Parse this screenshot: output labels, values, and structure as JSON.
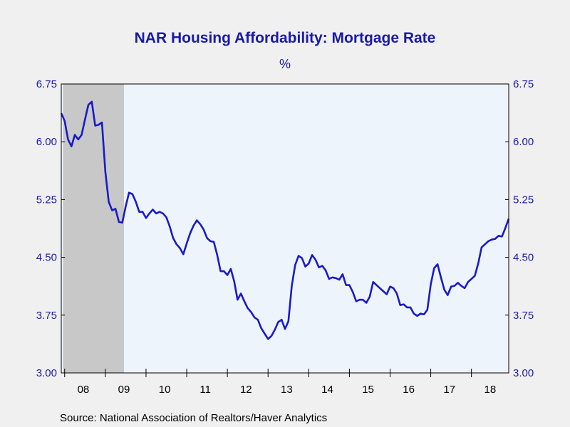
{
  "chart_data": {
    "type": "line",
    "title": "NAR Housing Affordability: Mortgage Rate",
    "unit": "%",
    "source": "Source:  National Association of Realtors/Haver Analytics",
    "ylim": [
      3.0,
      6.75
    ],
    "yticks": [
      "3.00",
      "3.75",
      "4.50",
      "5.25",
      "6.00",
      "6.75"
    ],
    "x_start": "2007-12",
    "x_end": "2018-12",
    "year_labels": [
      "08",
      "09",
      "10",
      "11",
      "12",
      "13",
      "14",
      "15",
      "16",
      "17",
      "18"
    ],
    "recession": {
      "start": "2008-01",
      "end": "2009-06",
      "color": "#c8c8c8"
    },
    "plot_background": "#eef4fc",
    "line_color": "#1a1ac8",
    "text_color": "#1a1aa8",
    "series": [
      {
        "points": [
          [
            "2007-12",
            6.37
          ],
          [
            "2008-01",
            6.27
          ],
          [
            "2008-02",
            6.03
          ],
          [
            "2008-03",
            5.94
          ],
          [
            "2008-04",
            6.09
          ],
          [
            "2008-05",
            6.03
          ],
          [
            "2008-06",
            6.09
          ],
          [
            "2008-07",
            6.29
          ],
          [
            "2008-08",
            6.48
          ],
          [
            "2008-09",
            6.52
          ],
          [
            "2008-10",
            6.21
          ],
          [
            "2008-11",
            6.22
          ],
          [
            "2008-12",
            6.25
          ],
          [
            "2009-01",
            5.61
          ],
          [
            "2009-02",
            5.22
          ],
          [
            "2009-03",
            5.11
          ],
          [
            "2009-04",
            5.13
          ],
          [
            "2009-05",
            4.96
          ],
          [
            "2009-06",
            4.95
          ],
          [
            "2009-07",
            5.16
          ],
          [
            "2009-08",
            5.34
          ],
          [
            "2009-09",
            5.32
          ],
          [
            "2009-10",
            5.22
          ],
          [
            "2009-11",
            5.09
          ],
          [
            "2009-12",
            5.09
          ],
          [
            "2010-01",
            5.01
          ],
          [
            "2010-02",
            5.07
          ],
          [
            "2010-03",
            5.12
          ],
          [
            "2010-04",
            5.07
          ],
          [
            "2010-05",
            5.09
          ],
          [
            "2010-06",
            5.07
          ],
          [
            "2010-07",
            5.02
          ],
          [
            "2010-08",
            4.9
          ],
          [
            "2010-09",
            4.75
          ],
          [
            "2010-10",
            4.67
          ],
          [
            "2010-11",
            4.62
          ],
          [
            "2010-12",
            4.54
          ],
          [
            "2011-01",
            4.68
          ],
          [
            "2011-02",
            4.81
          ],
          [
            "2011-03",
            4.91
          ],
          [
            "2011-04",
            4.98
          ],
          [
            "2011-05",
            4.93
          ],
          [
            "2011-06",
            4.86
          ],
          [
            "2011-07",
            4.75
          ],
          [
            "2011-08",
            4.71
          ],
          [
            "2011-09",
            4.7
          ],
          [
            "2011-10",
            4.53
          ],
          [
            "2011-11",
            4.32
          ],
          [
            "2011-12",
            4.32
          ],
          [
            "2012-01",
            4.27
          ],
          [
            "2012-02",
            4.35
          ],
          [
            "2012-03",
            4.19
          ],
          [
            "2012-04",
            3.95
          ],
          [
            "2012-05",
            4.03
          ],
          [
            "2012-06",
            3.93
          ],
          [
            "2012-07",
            3.84
          ],
          [
            "2012-08",
            3.79
          ],
          [
            "2012-09",
            3.72
          ],
          [
            "2012-10",
            3.69
          ],
          [
            "2012-11",
            3.58
          ],
          [
            "2012-12",
            3.51
          ],
          [
            "2013-01",
            3.44
          ],
          [
            "2013-02",
            3.48
          ],
          [
            "2013-03",
            3.56
          ],
          [
            "2013-04",
            3.66
          ],
          [
            "2013-05",
            3.69
          ],
          [
            "2013-06",
            3.57
          ],
          [
            "2013-07",
            3.67
          ],
          [
            "2013-08",
            4.13
          ],
          [
            "2013-09",
            4.4
          ],
          [
            "2013-10",
            4.52
          ],
          [
            "2013-11",
            4.49
          ],
          [
            "2013-12",
            4.38
          ],
          [
            "2014-01",
            4.42
          ],
          [
            "2014-02",
            4.53
          ],
          [
            "2014-03",
            4.47
          ],
          [
            "2014-04",
            4.37
          ],
          [
            "2014-05",
            4.39
          ],
          [
            "2014-06",
            4.33
          ],
          [
            "2014-07",
            4.22
          ],
          [
            "2014-08",
            4.24
          ],
          [
            "2014-09",
            4.23
          ],
          [
            "2014-10",
            4.21
          ],
          [
            "2014-11",
            4.28
          ],
          [
            "2014-12",
            4.14
          ],
          [
            "2015-01",
            4.14
          ],
          [
            "2015-02",
            4.05
          ],
          [
            "2015-03",
            3.93
          ],
          [
            "2015-04",
            3.95
          ],
          [
            "2015-05",
            3.95
          ],
          [
            "2015-06",
            3.91
          ],
          [
            "2015-07",
            3.99
          ],
          [
            "2015-08",
            4.18
          ],
          [
            "2015-09",
            4.14
          ],
          [
            "2015-10",
            4.1
          ],
          [
            "2015-11",
            4.06
          ],
          [
            "2015-12",
            4.02
          ],
          [
            "2016-01",
            4.12
          ],
          [
            "2016-02",
            4.1
          ],
          [
            "2016-03",
            4.03
          ],
          [
            "2016-04",
            3.88
          ],
          [
            "2016-05",
            3.89
          ],
          [
            "2016-06",
            3.85
          ],
          [
            "2016-07",
            3.85
          ],
          [
            "2016-08",
            3.77
          ],
          [
            "2016-09",
            3.74
          ],
          [
            "2016-10",
            3.77
          ],
          [
            "2016-11",
            3.76
          ],
          [
            "2016-12",
            3.82
          ],
          [
            "2017-01",
            4.15
          ],
          [
            "2017-02",
            4.36
          ],
          [
            "2017-03",
            4.41
          ],
          [
            "2017-04",
            4.24
          ],
          [
            "2017-05",
            4.08
          ],
          [
            "2017-06",
            4.01
          ],
          [
            "2017-07",
            4.12
          ],
          [
            "2017-08",
            4.13
          ],
          [
            "2017-09",
            4.17
          ],
          [
            "2017-10",
            4.13
          ],
          [
            "2017-11",
            4.1
          ],
          [
            "2017-12",
            4.18
          ],
          [
            "2018-01",
            4.22
          ],
          [
            "2018-02",
            4.26
          ],
          [
            "2018-03",
            4.42
          ],
          [
            "2018-04",
            4.63
          ],
          [
            "2018-05",
            4.67
          ],
          [
            "2018-06",
            4.71
          ],
          [
            "2018-07",
            4.73
          ],
          [
            "2018-08",
            4.74
          ],
          [
            "2018-09",
            4.78
          ],
          [
            "2018-10",
            4.77
          ],
          [
            "2018-11",
            4.88
          ],
          [
            "2018-12",
            5.0
          ]
        ]
      }
    ],
    "grid": false
  }
}
